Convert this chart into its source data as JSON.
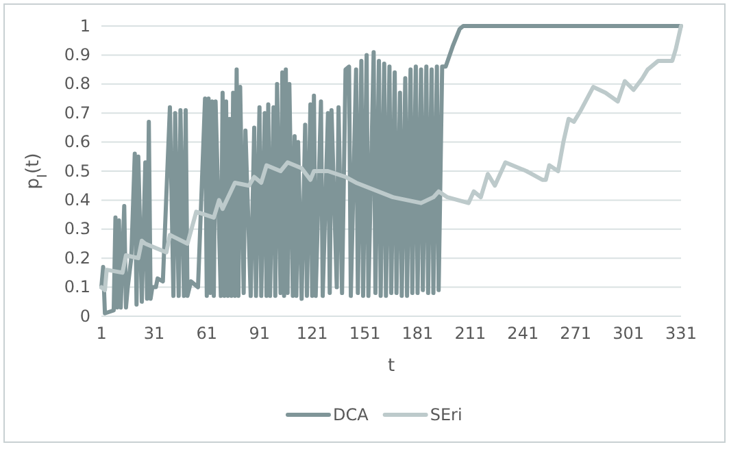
{
  "chart_data": {
    "type": "line",
    "xlabel": "t",
    "ylabel": "p$_{I}$(t)",
    "xlim": [
      1,
      331
    ],
    "xticks": [
      1,
      31,
      61,
      91,
      121,
      151,
      181,
      211,
      241,
      271,
      301,
      331
    ],
    "ylim": [
      0,
      1
    ],
    "yticks": [
      0,
      0.1,
      0.2,
      0.3,
      0.4,
      0.5,
      0.6,
      0.7,
      0.8,
      0.9,
      1
    ],
    "grid": "y",
    "legend": "bottom",
    "marker": "none",
    "line_style": "solid",
    "series": [
      {
        "name": "DCA",
        "color": "#7f9598",
        "x": [
          1,
          2,
          3,
          8,
          9,
          10,
          11,
          12,
          14,
          15,
          16,
          18,
          20,
          21,
          22,
          24,
          26,
          27,
          28,
          29,
          30,
          32,
          33,
          36,
          40,
          42,
          43,
          45,
          46,
          48,
          49,
          50,
          52,
          56,
          60,
          61,
          62,
          63,
          64,
          65,
          66,
          69,
          70,
          71,
          72,
          73,
          74,
          75,
          76,
          77,
          78,
          79,
          80,
          82,
          83,
          86,
          88,
          89,
          91,
          92,
          94,
          95,
          96,
          97,
          99,
          100,
          101,
          103,
          104,
          105,
          106,
          107,
          108,
          110,
          111,
          112,
          113,
          115,
          117,
          118,
          120,
          121,
          122,
          123,
          126,
          127,
          130,
          131,
          132,
          135,
          136,
          138,
          140,
          142,
          143,
          146,
          147,
          149,
          150,
          152,
          153,
          156,
          157,
          159,
          160,
          162,
          163,
          165,
          166,
          168,
          169,
          171,
          172,
          174,
          175,
          177,
          178,
          180,
          181,
          183,
          184,
          186,
          187,
          189,
          190,
          192,
          193,
          195,
          197,
          201,
          205,
          207,
          331
        ],
        "values": [
          0.1,
          0.17,
          0.01,
          0.02,
          0.34,
          0.03,
          0.33,
          0.03,
          0.38,
          0.03,
          0.1,
          0.2,
          0.56,
          0.04,
          0.55,
          0.05,
          0.53,
          0.06,
          0.67,
          0.06,
          0.1,
          0.1,
          0.13,
          0.12,
          0.72,
          0.07,
          0.7,
          0.07,
          0.71,
          0.07,
          0.71,
          0.07,
          0.12,
          0.1,
          0.75,
          0.07,
          0.75,
          0.08,
          0.74,
          0.07,
          0.74,
          0.07,
          0.77,
          0.07,
          0.74,
          0.07,
          0.68,
          0.07,
          0.77,
          0.07,
          0.85,
          0.07,
          0.79,
          0.08,
          0.64,
          0.07,
          0.65,
          0.07,
          0.72,
          0.07,
          0.7,
          0.07,
          0.73,
          0.07,
          0.72,
          0.07,
          0.8,
          0.08,
          0.84,
          0.07,
          0.85,
          0.08,
          0.8,
          0.07,
          0.62,
          0.07,
          0.6,
          0.06,
          0.66,
          0.07,
          0.73,
          0.07,
          0.76,
          0.07,
          0.74,
          0.07,
          0.7,
          0.08,
          0.71,
          0.1,
          0.72,
          0.08,
          0.85,
          0.86,
          0.07,
          0.85,
          0.08,
          0.88,
          0.07,
          0.9,
          0.07,
          0.91,
          0.08,
          0.88,
          0.07,
          0.87,
          0.07,
          0.86,
          0.08,
          0.84,
          0.08,
          0.77,
          0.07,
          0.82,
          0.07,
          0.85,
          0.08,
          0.86,
          0.08,
          0.85,
          0.09,
          0.86,
          0.08,
          0.85,
          0.08,
          0.86,
          0.09,
          0.86,
          0.86,
          0.93,
          0.99,
          1,
          1
        ]
      },
      {
        "name": "SEri",
        "color": "#bdcacb",
        "x": [
          1,
          3,
          4,
          13,
          15,
          22,
          24,
          26,
          38,
          40,
          50,
          55,
          65,
          68,
          70,
          77,
          85,
          88,
          92,
          95,
          103,
          107,
          115,
          120,
          122,
          130,
          140,
          146,
          167,
          183,
          190,
          193,
          198,
          210,
          213,
          217,
          221,
          225,
          231,
          243,
          252,
          254,
          256,
          261,
          264,
          267,
          270,
          274,
          281,
          288,
          295,
          299,
          304,
          309,
          312,
          318,
          326,
          328,
          331
        ],
        "values": [
          0.1,
          0.09,
          0.16,
          0.15,
          0.21,
          0.2,
          0.26,
          0.25,
          0.22,
          0.28,
          0.25,
          0.36,
          0.34,
          0.4,
          0.37,
          0.46,
          0.45,
          0.48,
          0.46,
          0.52,
          0.5,
          0.53,
          0.51,
          0.47,
          0.5,
          0.5,
          0.48,
          0.46,
          0.41,
          0.39,
          0.41,
          0.43,
          0.41,
          0.39,
          0.43,
          0.41,
          0.49,
          0.45,
          0.53,
          0.5,
          0.47,
          0.47,
          0.52,
          0.5,
          0.6,
          0.68,
          0.67,
          0.71,
          0.79,
          0.77,
          0.74,
          0.81,
          0.78,
          0.82,
          0.85,
          0.88,
          0.88,
          0.92,
          1
        ]
      }
    ]
  }
}
